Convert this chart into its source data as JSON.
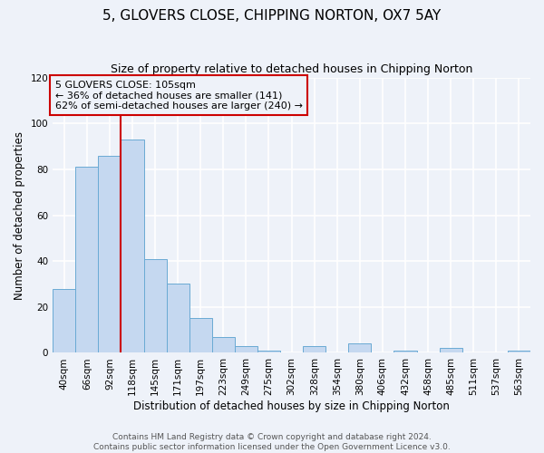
{
  "title": "5, GLOVERS CLOSE, CHIPPING NORTON, OX7 5AY",
  "subtitle": "Size of property relative to detached houses in Chipping Norton",
  "xlabel": "Distribution of detached houses by size in Chipping Norton",
  "ylabel": "Number of detached properties",
  "bar_values": [
    28,
    81,
    86,
    93,
    41,
    30,
    15,
    7,
    3,
    1,
    0,
    3,
    0,
    4,
    0,
    1,
    0,
    2,
    0,
    0,
    1
  ],
  "bin_labels": [
    "40sqm",
    "66sqm",
    "92sqm",
    "118sqm",
    "145sqm",
    "171sqm",
    "197sqm",
    "223sqm",
    "249sqm",
    "275sqm",
    "302sqm",
    "328sqm",
    "354sqm",
    "380sqm",
    "406sqm",
    "432sqm",
    "458sqm",
    "485sqm",
    "511sqm",
    "537sqm",
    "563sqm"
  ],
  "bin_width": 26,
  "bar_color": "#c5d8f0",
  "bar_edge_color": "#6aaad4",
  "ylim": [
    0,
    120
  ],
  "yticks": [
    0,
    20,
    40,
    60,
    80,
    100,
    120
  ],
  "property_size": 105,
  "vline_color": "#cc0000",
  "annotation_title": "5 GLOVERS CLOSE: 105sqm",
  "annotation_line1": "← 36% of detached houses are smaller (141)",
  "annotation_line2": "62% of semi-detached houses are larger (240) →",
  "annotation_box_color": "#cc0000",
  "footer_line1": "Contains HM Land Registry data © Crown copyright and database right 2024.",
  "footer_line2": "Contains public sector information licensed under the Open Government Licence v3.0.",
  "bg_color": "#eef2f9",
  "grid_color": "#ffffff",
  "title_fontsize": 11,
  "subtitle_fontsize": 9,
  "axis_label_fontsize": 8.5,
  "tick_fontsize": 7.5,
  "footer_fontsize": 6.5,
  "annot_fontsize": 8
}
